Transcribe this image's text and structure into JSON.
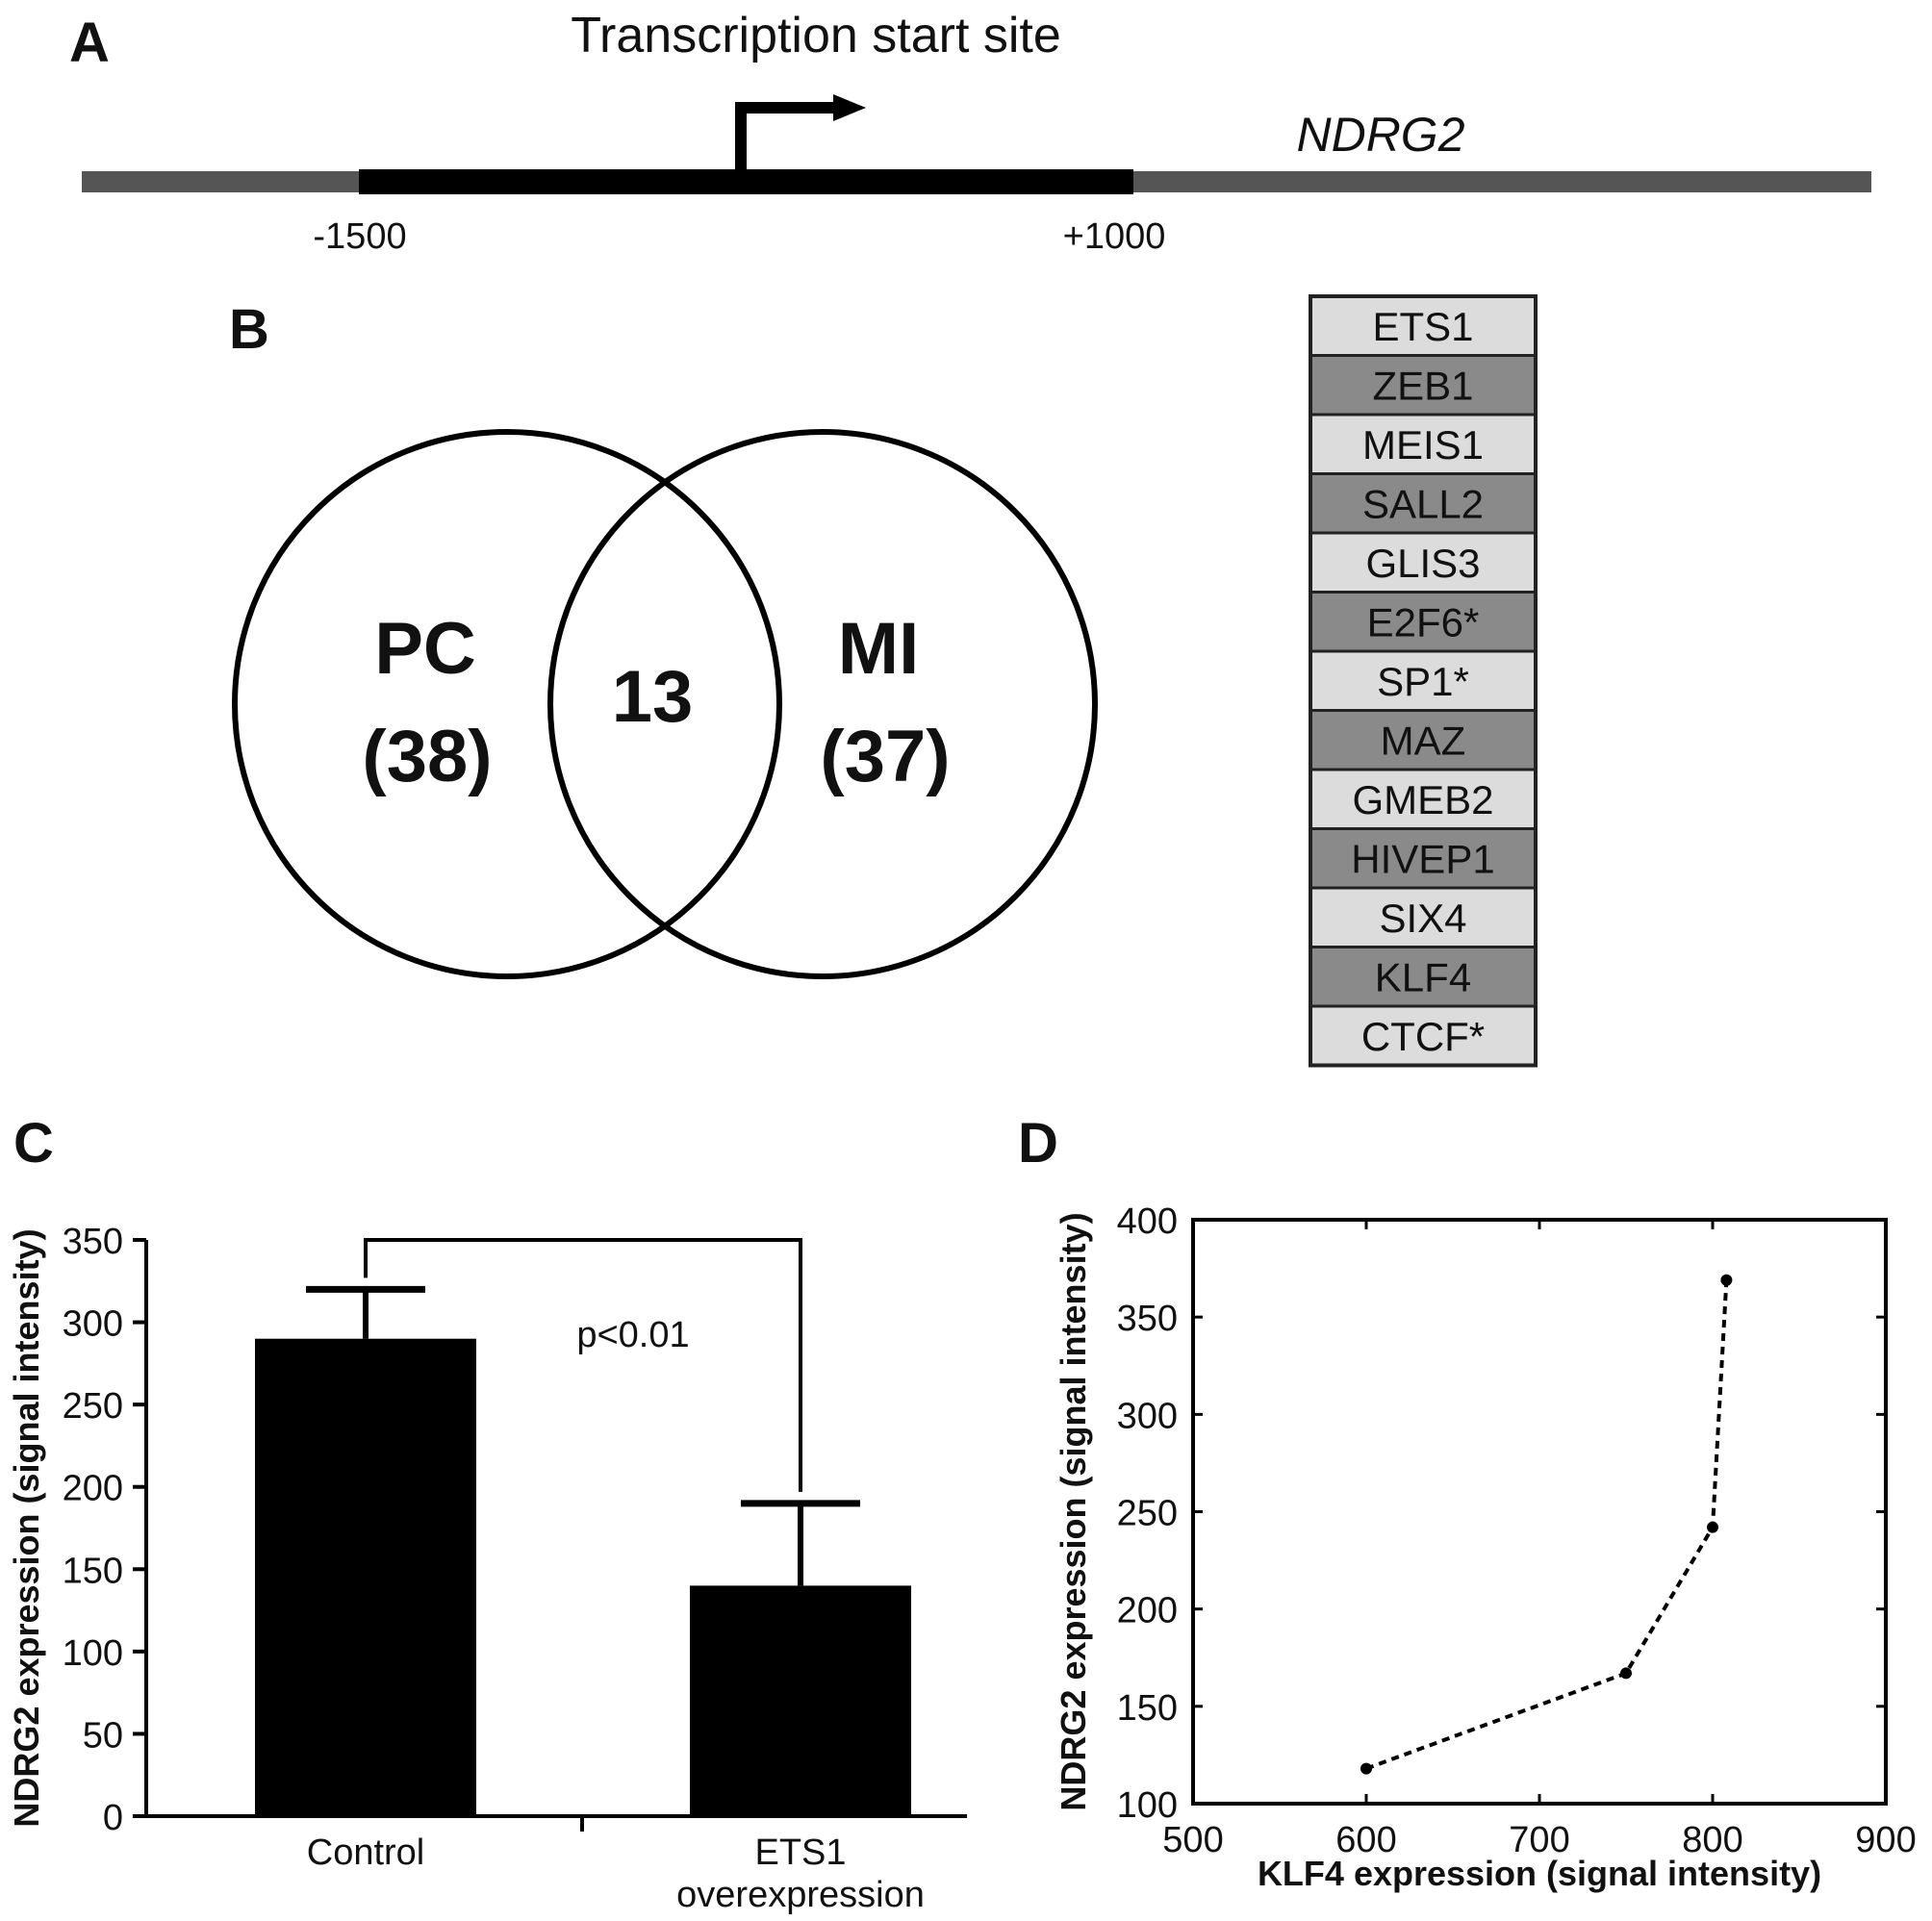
{
  "panel_a": {
    "letter": "A",
    "tss_label": "Transcription start site",
    "gene_name": "NDRG2",
    "left_coord": "-1500",
    "right_coord": "+1000"
  },
  "panel_b": {
    "letter": "B",
    "left_set": "PC",
    "left_count": "(38)",
    "overlap": "13",
    "right_set": "MI",
    "right_count": "(37)",
    "tf_list": [
      {
        "name": "ETS1",
        "shade": "light"
      },
      {
        "name": "ZEB1",
        "shade": "dark"
      },
      {
        "name": "MEIS1",
        "shade": "light"
      },
      {
        "name": "SALL2",
        "shade": "dark"
      },
      {
        "name": "GLIS3",
        "shade": "light"
      },
      {
        "name": "E2F6*",
        "shade": "dark"
      },
      {
        "name": "SP1*",
        "shade": "light"
      },
      {
        "name": "MAZ",
        "shade": "dark"
      },
      {
        "name": "GMEB2",
        "shade": "light"
      },
      {
        "name": "HIVEP1",
        "shade": "dark"
      },
      {
        "name": "SIX4",
        "shade": "light"
      },
      {
        "name": "KLF4",
        "shade": "dark"
      },
      {
        "name": "CTCF*",
        "shade": "light"
      }
    ],
    "colors": {
      "light": "#dcdcdc",
      "dark": "#8a8a8a"
    }
  },
  "chart_data": [
    {
      "panel": "C",
      "type": "bar",
      "categories": [
        "Control",
        "ETS1\noverexpression"
      ],
      "values": [
        290,
        140
      ],
      "errors": [
        30,
        50
      ],
      "ylabel": "NDRG2 expression (signal intensity)",
      "xlabel": "",
      "ylim": [
        0,
        350
      ],
      "yticks": [
        0,
        50,
        100,
        150,
        200,
        250,
        300,
        350
      ],
      "annotation": "p<0.01",
      "bar_color": "#000000"
    },
    {
      "panel": "D",
      "type": "line",
      "x": [
        600,
        750,
        800,
        808
      ],
      "y": [
        118,
        167,
        242,
        369
      ],
      "xlabel": "KLF4 expression (signal intensity)",
      "ylabel": "NDRG2 expression (signal intensity)",
      "xlim": [
        500,
        900
      ],
      "ylim": [
        100,
        400
      ],
      "xticks": [
        500,
        600,
        700,
        800,
        900
      ],
      "yticks": [
        100,
        150,
        200,
        250,
        300,
        350,
        400
      ],
      "line_style": "dotted"
    }
  ]
}
